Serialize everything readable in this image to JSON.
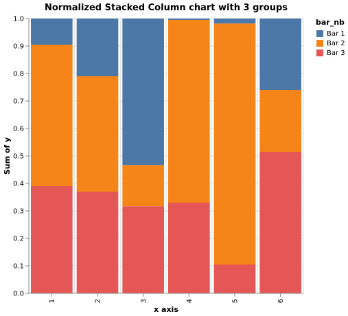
{
  "chart_data": {
    "type": "bar",
    "stacked": true,
    "normalized": true,
    "title": "Normalized Stacked Column chart with 3 groups",
    "xlabel": "x axis",
    "ylabel": "Sum of y",
    "categories": [
      "1",
      "2",
      "3",
      "4",
      "5",
      "6"
    ],
    "y_ticks": [
      "0.0",
      "0.1",
      "0.2",
      "0.3",
      "0.4",
      "0.5",
      "0.6",
      "0.7",
      "0.8",
      "0.9",
      "1.0"
    ],
    "ylim": [
      0,
      1
    ],
    "grid": true,
    "legend": {
      "title": "bar_nb",
      "position": "top-right"
    },
    "series": [
      {
        "name": "Bar 1",
        "color": "#4c78a8",
        "values": [
          0.095,
          0.21,
          0.533,
          0.005,
          0.018,
          0.26
        ]
      },
      {
        "name": "Bar 2",
        "color": "#f58518",
        "values": [
          0.515,
          0.42,
          0.15,
          0.665,
          0.877,
          0.225
        ]
      },
      {
        "name": "Bar 3",
        "color": "#e45756",
        "values": [
          0.39,
          0.37,
          0.317,
          0.33,
          0.105,
          0.515
        ]
      }
    ]
  }
}
